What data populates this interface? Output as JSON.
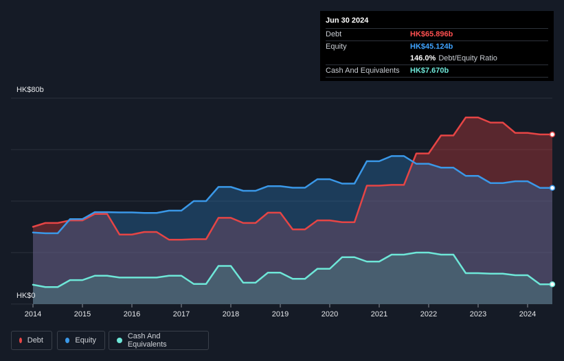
{
  "tooltip": {
    "date": "Jun 30 2024",
    "rows": [
      {
        "label": "Debt",
        "value": "HK$65.896b",
        "color": "#ff5050"
      },
      {
        "label": "Equity",
        "value": "HK$45.124b",
        "color": "#3fa3ff"
      },
      {
        "label": "",
        "value": "146.0%",
        "sub": "Debt/Equity Ratio",
        "color": "#ffffff"
      },
      {
        "label": "Cash And Equivalents",
        "value": "HK$7.670b",
        "color": "#6ee7d8"
      }
    ]
  },
  "legend": [
    {
      "label": "Debt",
      "color": "#e64545"
    },
    {
      "label": "Equity",
      "color": "#3a98e8"
    },
    {
      "label": "Cash And Equivalents",
      "color": "#6ee7d8"
    }
  ],
  "chart_data": {
    "type": "area",
    "title": "",
    "xlabel": "",
    "ylabel": "",
    "y_top_label": "HK$80b",
    "y_bottom_label": "HK$0",
    "ylim": [
      0,
      80
    ],
    "xlim": [
      2014.0,
      2024.5
    ],
    "x_ticks": [
      "2014",
      "2015",
      "2016",
      "2017",
      "2018",
      "2019",
      "2020",
      "2021",
      "2022",
      "2023",
      "2024"
    ],
    "grid": true,
    "series": [
      {
        "name": "Debt",
        "color": "#e64545",
        "points": [
          [
            2014.0,
            30.0
          ],
          [
            2014.25,
            31.5
          ],
          [
            2014.5,
            31.5
          ],
          [
            2014.75,
            32.5
          ],
          [
            2015.0,
            32.5
          ],
          [
            2015.25,
            35.0
          ],
          [
            2015.5,
            35.0
          ],
          [
            2015.75,
            27.0
          ],
          [
            2016.0,
            27.0
          ],
          [
            2016.25,
            28.0
          ],
          [
            2016.5,
            28.0
          ],
          [
            2016.75,
            25.0
          ],
          [
            2017.0,
            25.0
          ],
          [
            2017.25,
            25.2
          ],
          [
            2017.5,
            25.2
          ],
          [
            2017.75,
            33.5
          ],
          [
            2018.0,
            33.5
          ],
          [
            2018.25,
            31.5
          ],
          [
            2018.5,
            31.5
          ],
          [
            2018.75,
            35.5
          ],
          [
            2019.0,
            35.5
          ],
          [
            2019.25,
            29.0
          ],
          [
            2019.5,
            29.0
          ],
          [
            2019.75,
            32.5
          ],
          [
            2020.0,
            32.5
          ],
          [
            2020.25,
            31.8
          ],
          [
            2020.5,
            31.8
          ],
          [
            2020.75,
            46.0
          ],
          [
            2021.0,
            46.0
          ],
          [
            2021.25,
            46.3
          ],
          [
            2021.5,
            46.3
          ],
          [
            2021.75,
            58.5
          ],
          [
            2022.0,
            58.5
          ],
          [
            2022.25,
            65.5
          ],
          [
            2022.5,
            65.5
          ],
          [
            2022.75,
            72.5
          ],
          [
            2023.0,
            72.5
          ],
          [
            2023.25,
            70.5
          ],
          [
            2023.5,
            70.5
          ],
          [
            2023.75,
            66.5
          ],
          [
            2024.0,
            66.5
          ],
          [
            2024.25,
            65.9
          ],
          [
            2024.5,
            65.896
          ]
        ]
      },
      {
        "name": "Equity",
        "color": "#3a98e8",
        "points": [
          [
            2014.0,
            27.8
          ],
          [
            2014.25,
            27.5
          ],
          [
            2014.5,
            27.5
          ],
          [
            2014.75,
            33.0
          ],
          [
            2015.0,
            33.0
          ],
          [
            2015.25,
            35.7
          ],
          [
            2015.5,
            35.7
          ],
          [
            2015.75,
            35.6
          ],
          [
            2016.0,
            35.6
          ],
          [
            2016.25,
            35.4
          ],
          [
            2016.5,
            35.4
          ],
          [
            2016.75,
            36.3
          ],
          [
            2017.0,
            36.3
          ],
          [
            2017.25,
            40.0
          ],
          [
            2017.5,
            40.0
          ],
          [
            2017.75,
            45.5
          ],
          [
            2018.0,
            45.5
          ],
          [
            2018.25,
            44.0
          ],
          [
            2018.5,
            44.0
          ],
          [
            2018.75,
            45.8
          ],
          [
            2019.0,
            45.8
          ],
          [
            2019.25,
            45.2
          ],
          [
            2019.5,
            45.2
          ],
          [
            2019.75,
            48.5
          ],
          [
            2020.0,
            48.5
          ],
          [
            2020.25,
            46.8
          ],
          [
            2020.5,
            46.8
          ],
          [
            2020.75,
            55.5
          ],
          [
            2021.0,
            55.5
          ],
          [
            2021.25,
            57.5
          ],
          [
            2021.5,
            57.5
          ],
          [
            2021.75,
            54.5
          ],
          [
            2022.0,
            54.5
          ],
          [
            2022.25,
            53.0
          ],
          [
            2022.5,
            53.0
          ],
          [
            2022.75,
            49.8
          ],
          [
            2023.0,
            49.8
          ],
          [
            2023.25,
            47.0
          ],
          [
            2023.5,
            47.0
          ],
          [
            2023.75,
            47.7
          ],
          [
            2024.0,
            47.7
          ],
          [
            2024.25,
            45.124
          ],
          [
            2024.5,
            45.124
          ]
        ]
      },
      {
        "name": "Cash And Equivalents",
        "color": "#6ee7d8",
        "points": [
          [
            2014.0,
            7.5
          ],
          [
            2014.25,
            6.6
          ],
          [
            2014.5,
            6.6
          ],
          [
            2014.75,
            9.3
          ],
          [
            2015.0,
            9.3
          ],
          [
            2015.25,
            11.0
          ],
          [
            2015.5,
            11.0
          ],
          [
            2015.75,
            10.3
          ],
          [
            2016.0,
            10.3
          ],
          [
            2016.25,
            10.3
          ],
          [
            2016.5,
            10.3
          ],
          [
            2016.75,
            11.0
          ],
          [
            2017.0,
            11.0
          ],
          [
            2017.25,
            7.8
          ],
          [
            2017.5,
            7.8
          ],
          [
            2017.75,
            14.8
          ],
          [
            2018.0,
            14.8
          ],
          [
            2018.25,
            8.3
          ],
          [
            2018.5,
            8.3
          ],
          [
            2018.75,
            12.2
          ],
          [
            2019.0,
            12.2
          ],
          [
            2019.25,
            9.8
          ],
          [
            2019.5,
            9.8
          ],
          [
            2019.75,
            13.7
          ],
          [
            2020.0,
            13.7
          ],
          [
            2020.25,
            18.2
          ],
          [
            2020.5,
            18.2
          ],
          [
            2020.75,
            16.5
          ],
          [
            2021.0,
            16.5
          ],
          [
            2021.25,
            19.2
          ],
          [
            2021.5,
            19.2
          ],
          [
            2021.75,
            20.0
          ],
          [
            2022.0,
            20.0
          ],
          [
            2022.25,
            19.2
          ],
          [
            2022.5,
            19.2
          ],
          [
            2022.75,
            12.0
          ],
          [
            2023.0,
            12.0
          ],
          [
            2023.25,
            11.8
          ],
          [
            2023.5,
            11.8
          ],
          [
            2023.75,
            11.2
          ],
          [
            2024.0,
            11.2
          ],
          [
            2024.25,
            7.67
          ],
          [
            2024.5,
            7.67
          ]
        ]
      }
    ]
  }
}
